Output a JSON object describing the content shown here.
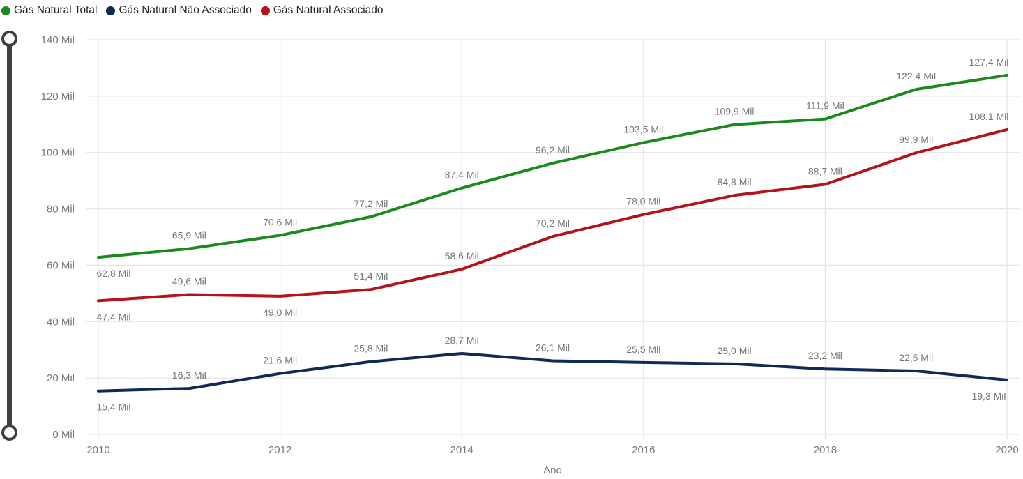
{
  "chart_data": {
    "type": "line",
    "title": "",
    "xlabel": "Ano",
    "ylabel": "",
    "x": [
      2010,
      2011,
      2012,
      2013,
      2014,
      2015,
      2016,
      2017,
      2018,
      2019,
      2020
    ],
    "xtick_years": [
      2010,
      2012,
      2014,
      2016,
      2018,
      2020
    ],
    "ylim": [
      0,
      140
    ],
    "yticks": [
      0,
      20,
      40,
      60,
      80,
      100,
      120,
      140
    ],
    "ytick_labels": [
      "0 Mil",
      "20 Mil",
      "40 Mil",
      "60 Mil",
      "80 Mil",
      "100 Mil",
      "120 Mil",
      "140 Mil"
    ],
    "unit": "Mil",
    "grid": true,
    "legend_position": "top-left",
    "series": [
      {
        "name": "Gás Natural Total",
        "color": "#1A8A1D",
        "values": [
          62.8,
          65.9,
          70.6,
          77.2,
          87.4,
          96.2,
          103.5,
          109.9,
          111.9,
          122.4,
          127.4
        ],
        "labels": [
          "62,8 Mil",
          "65,9 Mil",
          "70,6 Mil",
          "77,2 Mil",
          "87,4 Mil",
          "96,2 Mil",
          "103,5 Mil",
          "109,9 Mil",
          "111,9 Mil",
          "122,4 Mil",
          "127,4 Mil"
        ],
        "label_positions": [
          "below",
          "above",
          "above",
          "above",
          "above",
          "above",
          "above",
          "above",
          "above",
          "above",
          "above"
        ]
      },
      {
        "name": "Gás Natural Não Associado",
        "color": "#102A55",
        "values": [
          15.4,
          16.3,
          21.6,
          25.8,
          28.7,
          26.1,
          25.5,
          25.0,
          23.2,
          22.5,
          19.3
        ],
        "labels": [
          "15,4 Mil",
          "16,3 Mil",
          "21,6 Mil",
          "25,8 Mil",
          "28,7 Mil",
          "26,1 Mil",
          "25,5 Mil",
          "25,0 Mil",
          "23,2 Mil",
          "22,5 Mil",
          "19,3 Mil"
        ],
        "label_positions": [
          "below",
          "above",
          "above",
          "above",
          "above",
          "above",
          "above",
          "above",
          "above",
          "above",
          "below"
        ]
      },
      {
        "name": "Gás Natural Associado",
        "color": "#B5121B",
        "values": [
          47.4,
          49.6,
          49.0,
          51.4,
          58.6,
          70.2,
          78.0,
          84.8,
          88.7,
          99.9,
          108.1
        ],
        "labels": [
          "47,4 Mil",
          "49,6 Mil",
          "49,0 Mil",
          "51,4 Mil",
          "58,6 Mil",
          "70,2 Mil",
          "78,0 Mil",
          "84,8 Mil",
          "88,7 Mil",
          "99,9 Mil",
          "108,1 Mil"
        ],
        "label_positions": [
          "below",
          "above",
          "below",
          "above",
          "above",
          "above",
          "above",
          "above",
          "above",
          "above",
          "above"
        ]
      }
    ]
  },
  "colors": {
    "grid": "#E6E6E6",
    "axis_text": "#767676",
    "data_label_text": "#767676",
    "legend_text": "#212121",
    "slider": "#3F3F3F"
  }
}
